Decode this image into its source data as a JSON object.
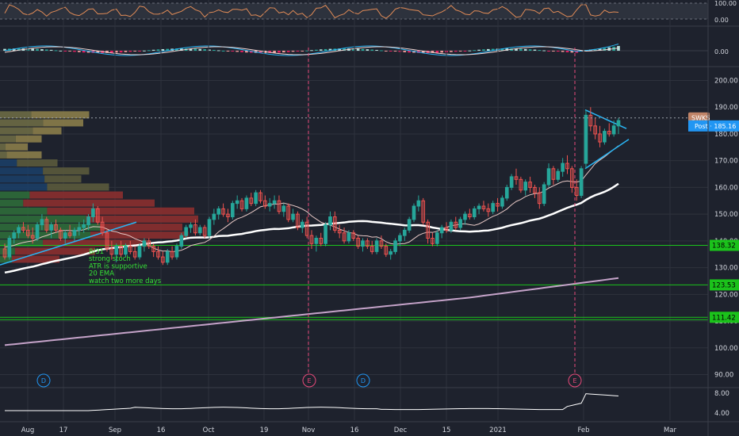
{
  "chart_data": {
    "type": "candlestick",
    "symbol": "SWKS",
    "post_label": "Post",
    "post_price": "185.16",
    "last_price": 185.16,
    "price_axis_ticks": [
      90,
      100,
      110,
      120,
      130,
      140,
      150,
      160,
      170,
      180,
      190,
      200
    ],
    "price_axis_range": [
      86,
      204
    ],
    "time_axis_labels": [
      "Aug",
      "17",
      "Sep",
      "16",
      "Oct",
      "19",
      "Nov",
      "16",
      "Dec",
      "15",
      "2021",
      "Feb",
      "Mar"
    ],
    "horizontal_levels": [
      {
        "value": 138.32,
        "label": "138.32"
      },
      {
        "value": 123.53,
        "label": "123.53"
      },
      {
        "value": 111.42,
        "label": "111.42"
      }
    ],
    "annotation_note": [
      "8/31",
      "strong stoch",
      "ATR is supportive",
      "20 EMA",
      "watch two more days"
    ],
    "event_markers": [
      {
        "label": "D",
        "date": "Aug 13"
      },
      {
        "label": "E",
        "date": "Nov 2"
      },
      {
        "label": "D",
        "date": "Nov 19"
      },
      {
        "label": "E",
        "date": "Feb 1"
      }
    ],
    "volume_profile_rows": [
      {
        "price": 187,
        "bar": 0.45
      },
      {
        "price": 184,
        "bar": 0.42
      },
      {
        "price": 181,
        "bar": 0.31
      },
      {
        "price": 178,
        "bar": 0.21
      },
      {
        "price": 175,
        "bar": 0.14
      },
      {
        "price": 172,
        "bar": 0.21
      },
      {
        "price": 169,
        "bar": 0.29
      },
      {
        "price": 166,
        "bar": 0.45
      },
      {
        "price": 163,
        "bar": 0.41
      },
      {
        "price": 160,
        "bar": 0.55
      },
      {
        "price": 157,
        "bar": 0.62
      },
      {
        "price": 154,
        "bar": 0.78
      },
      {
        "price": 151,
        "bar": 0.98
      },
      {
        "price": 148,
        "bar": 1.0
      },
      {
        "price": 145,
        "bar": 0.92
      },
      {
        "price": 142,
        "bar": 0.95
      },
      {
        "price": 139,
        "bar": 0.74
      },
      {
        "price": 136,
        "bar": 0.48
      },
      {
        "price": 133,
        "bar": 0.3
      }
    ],
    "candles": [
      {
        "d": "Aug 3",
        "o": 137,
        "h": 139,
        "l": 133,
        "c": 134
      },
      {
        "d": "Aug 4",
        "o": 134,
        "h": 142,
        "l": 133,
        "c": 141
      },
      {
        "d": "Aug 5",
        "o": 141,
        "h": 144,
        "l": 139,
        "c": 143
      },
      {
        "d": "Aug 6",
        "o": 143,
        "h": 146,
        "l": 141,
        "c": 145
      },
      {
        "d": "Aug 7",
        "o": 145,
        "h": 147,
        "l": 143,
        "c": 144
      },
      {
        "d": "Aug 10",
        "o": 144,
        "h": 146,
        "l": 141,
        "c": 142
      },
      {
        "d": "Aug 11",
        "o": 142,
        "h": 145,
        "l": 139,
        "c": 141
      },
      {
        "d": "Aug 12",
        "o": 141,
        "h": 147,
        "l": 140,
        "c": 146
      },
      {
        "d": "Aug 13",
        "o": 146,
        "h": 150,
        "l": 144,
        "c": 148
      },
      {
        "d": "Aug 14",
        "o": 148,
        "h": 149,
        "l": 143,
        "c": 144
      },
      {
        "d": "Aug 17",
        "o": 144,
        "h": 147,
        "l": 141,
        "c": 146
      },
      {
        "d": "Aug 18",
        "o": 146,
        "h": 148,
        "l": 143,
        "c": 144
      },
      {
        "d": "Aug 19",
        "o": 144,
        "h": 145,
        "l": 140,
        "c": 141
      },
      {
        "d": "Aug 20",
        "o": 141,
        "h": 144,
        "l": 139,
        "c": 143
      },
      {
        "d": "Aug 21",
        "o": 143,
        "h": 146,
        "l": 141,
        "c": 142
      },
      {
        "d": "Aug 24",
        "o": 142,
        "h": 145,
        "l": 140,
        "c": 144
      },
      {
        "d": "Aug 25",
        "o": 144,
        "h": 147,
        "l": 142,
        "c": 145
      },
      {
        "d": "Aug 26",
        "o": 145,
        "h": 148,
        "l": 143,
        "c": 146
      },
      {
        "d": "Aug 27",
        "o": 146,
        "h": 150,
        "l": 144,
        "c": 149
      },
      {
        "d": "Aug 28",
        "o": 149,
        "h": 154,
        "l": 147,
        "c": 152
      },
      {
        "d": "Aug 31",
        "o": 152,
        "h": 153,
        "l": 146,
        "c": 147
      },
      {
        "d": "Sep 1",
        "o": 147,
        "h": 149,
        "l": 142,
        "c": 143
      },
      {
        "d": "Sep 2",
        "o": 143,
        "h": 144,
        "l": 136,
        "c": 137
      },
      {
        "d": "Sep 3",
        "o": 137,
        "h": 140,
        "l": 133,
        "c": 135
      },
      {
        "d": "Sep 4",
        "o": 135,
        "h": 139,
        "l": 132,
        "c": 138
      },
      {
        "d": "Sep 8",
        "o": 138,
        "h": 140,
        "l": 134,
        "c": 135
      },
      {
        "d": "Sep 9",
        "o": 135,
        "h": 139,
        "l": 134,
        "c": 138
      },
      {
        "d": "Sep 10",
        "o": 138,
        "h": 140,
        "l": 135,
        "c": 136
      },
      {
        "d": "Sep 11",
        "o": 136,
        "h": 138,
        "l": 133,
        "c": 134
      },
      {
        "d": "Sep 14",
        "o": 134,
        "h": 139,
        "l": 133,
        "c": 138
      },
      {
        "d": "Sep 15",
        "o": 138,
        "h": 141,
        "l": 136,
        "c": 140
      },
      {
        "d": "Sep 16",
        "o": 140,
        "h": 141,
        "l": 137,
        "c": 138
      },
      {
        "d": "Sep 17",
        "o": 138,
        "h": 139,
        "l": 134,
        "c": 136
      },
      {
        "d": "Sep 18",
        "o": 136,
        "h": 138,
        "l": 133,
        "c": 134
      },
      {
        "d": "Sep 21",
        "o": 134,
        "h": 136,
        "l": 131,
        "c": 132
      },
      {
        "d": "Sep 22",
        "o": 132,
        "h": 137,
        "l": 131,
        "c": 136
      },
      {
        "d": "Sep 23",
        "o": 136,
        "h": 138,
        "l": 133,
        "c": 134
      },
      {
        "d": "Sep 24",
        "o": 134,
        "h": 139,
        "l": 133,
        "c": 138
      },
      {
        "d": "Sep 25",
        "o": 138,
        "h": 143,
        "l": 137,
        "c": 142
      },
      {
        "d": "Sep 28",
        "o": 142,
        "h": 146,
        "l": 141,
        "c": 145
      },
      {
        "d": "Sep 29",
        "o": 145,
        "h": 147,
        "l": 143,
        "c": 146
      },
      {
        "d": "Sep 30",
        "o": 146,
        "h": 148,
        "l": 142,
        "c": 143
      },
      {
        "d": "Oct 1",
        "o": 143,
        "h": 146,
        "l": 142,
        "c": 145
      },
      {
        "d": "Oct 2",
        "o": 145,
        "h": 146,
        "l": 141,
        "c": 142
      },
      {
        "d": "Oct 5",
        "o": 142,
        "h": 149,
        "l": 141,
        "c": 148
      },
      {
        "d": "Oct 6",
        "o": 148,
        "h": 152,
        "l": 146,
        "c": 150
      },
      {
        "d": "Oct 7",
        "o": 150,
        "h": 153,
        "l": 148,
        "c": 152
      },
      {
        "d": "Oct 8",
        "o": 152,
        "h": 154,
        "l": 149,
        "c": 150
      },
      {
        "d": "Oct 9",
        "o": 150,
        "h": 152,
        "l": 147,
        "c": 149
      },
      {
        "d": "Oct 12",
        "o": 149,
        "h": 155,
        "l": 148,
        "c": 154
      },
      {
        "d": "Oct 13",
        "o": 154,
        "h": 157,
        "l": 152,
        "c": 155
      },
      {
        "d": "Oct 14",
        "o": 155,
        "h": 156,
        "l": 151,
        "c": 152
      },
      {
        "d": "Oct 15",
        "o": 152,
        "h": 157,
        "l": 151,
        "c": 156
      },
      {
        "d": "Oct 16",
        "o": 156,
        "h": 158,
        "l": 153,
        "c": 154
      },
      {
        "d": "Oct 19",
        "o": 154,
        "h": 159,
        "l": 153,
        "c": 158
      },
      {
        "d": "Oct 20",
        "o": 158,
        "h": 159,
        "l": 154,
        "c": 155
      },
      {
        "d": "Oct 21",
        "o": 155,
        "h": 157,
        "l": 152,
        "c": 153
      },
      {
        "d": "Oct 22",
        "o": 153,
        "h": 156,
        "l": 151,
        "c": 154
      },
      {
        "d": "Oct 23",
        "o": 154,
        "h": 157,
        "l": 152,
        "c": 155
      },
      {
        "d": "Oct 26",
        "o": 155,
        "h": 157,
        "l": 150,
        "c": 151
      },
      {
        "d": "Oct 27",
        "o": 151,
        "h": 154,
        "l": 149,
        "c": 153
      },
      {
        "d": "Oct 28",
        "o": 153,
        "h": 154,
        "l": 147,
        "c": 148
      },
      {
        "d": "Oct 29",
        "o": 148,
        "h": 152,
        "l": 147,
        "c": 150
      },
      {
        "d": "Oct 30",
        "o": 150,
        "h": 151,
        "l": 144,
        "c": 145
      },
      {
        "d": "Nov 2",
        "o": 145,
        "h": 148,
        "l": 143,
        "c": 147
      },
      {
        "d": "Nov 3",
        "o": 147,
        "h": 149,
        "l": 141,
        "c": 142
      },
      {
        "d": "Nov 4",
        "o": 142,
        "h": 144,
        "l": 137,
        "c": 139
      },
      {
        "d": "Nov 5",
        "o": 139,
        "h": 142,
        "l": 136,
        "c": 141
      },
      {
        "d": "Nov 6",
        "o": 141,
        "h": 143,
        "l": 138,
        "c": 139
      },
      {
        "d": "Nov 9",
        "o": 139,
        "h": 147,
        "l": 138,
        "c": 146
      },
      {
        "d": "Nov 10",
        "o": 146,
        "h": 151,
        "l": 144,
        "c": 149
      },
      {
        "d": "Nov 11",
        "o": 149,
        "h": 151,
        "l": 143,
        "c": 144
      },
      {
        "d": "Nov 12",
        "o": 144,
        "h": 146,
        "l": 141,
        "c": 143
      },
      {
        "d": "Nov 13",
        "o": 143,
        "h": 145,
        "l": 139,
        "c": 140
      },
      {
        "d": "Nov 16",
        "o": 140,
        "h": 144,
        "l": 139,
        "c": 143
      },
      {
        "d": "Nov 17",
        "o": 143,
        "h": 144,
        "l": 140,
        "c": 141
      },
      {
        "d": "Nov 18",
        "o": 141,
        "h": 142,
        "l": 137,
        "c": 138
      },
      {
        "d": "Nov 19",
        "o": 138,
        "h": 141,
        "l": 136,
        "c": 140
      },
      {
        "d": "Nov 20",
        "o": 140,
        "h": 141,
        "l": 137,
        "c": 138
      },
      {
        "d": "Nov 23",
        "o": 138,
        "h": 140,
        "l": 135,
        "c": 136
      },
      {
        "d": "Nov 24",
        "o": 136,
        "h": 141,
        "l": 135,
        "c": 140
      },
      {
        "d": "Nov 25",
        "o": 140,
        "h": 142,
        "l": 137,
        "c": 138
      },
      {
        "d": "Nov 27",
        "o": 138,
        "h": 139,
        "l": 134,
        "c": 135
      },
      {
        "d": "Nov 30",
        "o": 135,
        "h": 137,
        "l": 133,
        "c": 136
      },
      {
        "d": "Dec 1",
        "o": 136,
        "h": 141,
        "l": 135,
        "c": 140
      },
      {
        "d": "Dec 2",
        "o": 140,
        "h": 143,
        "l": 138,
        "c": 142
      },
      {
        "d": "Dec 3",
        "o": 142,
        "h": 145,
        "l": 140,
        "c": 144
      },
      {
        "d": "Dec 4",
        "o": 144,
        "h": 149,
        "l": 143,
        "c": 148
      },
      {
        "d": "Dec 7",
        "o": 148,
        "h": 154,
        "l": 147,
        "c": 153
      },
      {
        "d": "Dec 8",
        "o": 153,
        "h": 157,
        "l": 151,
        "c": 155
      },
      {
        "d": "Dec 9",
        "o": 155,
        "h": 156,
        "l": 146,
        "c": 147
      },
      {
        "d": "Dec 10",
        "o": 147,
        "h": 148,
        "l": 139,
        "c": 141
      },
      {
        "d": "Dec 11",
        "o": 141,
        "h": 143,
        "l": 138,
        "c": 139
      },
      {
        "d": "Dec 14",
        "o": 139,
        "h": 144,
        "l": 138,
        "c": 143
      },
      {
        "d": "Dec 15",
        "o": 143,
        "h": 146,
        "l": 141,
        "c": 145
      },
      {
        "d": "Dec 16",
        "o": 145,
        "h": 147,
        "l": 143,
        "c": 144
      },
      {
        "d": "Dec 17",
        "o": 144,
        "h": 148,
        "l": 143,
        "c": 147
      },
      {
        "d": "Dec 18",
        "o": 147,
        "h": 149,
        "l": 144,
        "c": 145
      },
      {
        "d": "Dec 21",
        "o": 145,
        "h": 149,
        "l": 144,
        "c": 148
      },
      {
        "d": "Dec 22",
        "o": 148,
        "h": 151,
        "l": 146,
        "c": 150
      },
      {
        "d": "Dec 23",
        "o": 150,
        "h": 152,
        "l": 148,
        "c": 149
      },
      {
        "d": "Dec 24",
        "o": 149,
        "h": 153,
        "l": 148,
        "c": 152
      },
      {
        "d": "Dec 28",
        "o": 152,
        "h": 154,
        "l": 150,
        "c": 153
      },
      {
        "d": "Dec 29",
        "o": 153,
        "h": 155,
        "l": 151,
        "c": 152
      },
      {
        "d": "Dec 30",
        "o": 152,
        "h": 154,
        "l": 149,
        "c": 151
      },
      {
        "d": "Dec 31",
        "o": 151,
        "h": 155,
        "l": 150,
        "c": 154
      },
      {
        "d": "Jan 4",
        "o": 154,
        "h": 156,
        "l": 151,
        "c": 153
      },
      {
        "d": "Jan 5",
        "o": 153,
        "h": 157,
        "l": 152,
        "c": 156
      },
      {
        "d": "Jan 6",
        "o": 156,
        "h": 161,
        "l": 155,
        "c": 160
      },
      {
        "d": "Jan 7",
        "o": 160,
        "h": 165,
        "l": 159,
        "c": 164
      },
      {
        "d": "Jan 8",
        "o": 164,
        "h": 167,
        "l": 161,
        "c": 163
      },
      {
        "d": "Jan 11",
        "o": 163,
        "h": 164,
        "l": 158,
        "c": 159
      },
      {
        "d": "Jan 12",
        "o": 159,
        "h": 163,
        "l": 157,
        "c": 162
      },
      {
        "d": "Jan 13",
        "o": 162,
        "h": 164,
        "l": 158,
        "c": 160
      },
      {
        "d": "Jan 14",
        "o": 160,
        "h": 161,
        "l": 156,
        "c": 158
      },
      {
        "d": "Jan 15",
        "o": 158,
        "h": 160,
        "l": 152,
        "c": 154
      },
      {
        "d": "Jan 19",
        "o": 154,
        "h": 162,
        "l": 153,
        "c": 161
      },
      {
        "d": "Jan 20",
        "o": 161,
        "h": 169,
        "l": 160,
        "c": 167
      },
      {
        "d": "Jan 21",
        "o": 167,
        "h": 168,
        "l": 161,
        "c": 163
      },
      {
        "d": "Jan 22",
        "o": 163,
        "h": 167,
        "l": 162,
        "c": 166
      },
      {
        "d": "Jan 25",
        "o": 166,
        "h": 171,
        "l": 164,
        "c": 169
      },
      {
        "d": "Jan 26",
        "o": 169,
        "h": 172,
        "l": 165,
        "c": 167
      },
      {
        "d": "Jan 27",
        "o": 167,
        "h": 168,
        "l": 158,
        "c": 160
      },
      {
        "d": "Jan 28",
        "o": 160,
        "h": 163,
        "l": 155,
        "c": 157
      },
      {
        "d": "Jan 29",
        "o": 157,
        "h": 168,
        "l": 156,
        "c": 167
      },
      {
        "d": "Feb 1",
        "o": 169,
        "h": 189,
        "l": 167,
        "c": 187
      },
      {
        "d": "Feb 2",
        "o": 187,
        "h": 190,
        "l": 181,
        "c": 183
      },
      {
        "d": "Feb 3",
        "o": 183,
        "h": 186,
        "l": 178,
        "c": 180
      },
      {
        "d": "Feb 4",
        "o": 180,
        "h": 183,
        "l": 175,
        "c": 177
      },
      {
        "d": "Feb 5",
        "o": 177,
        "h": 182,
        "l": 176,
        "c": 181
      },
      {
        "d": "Feb 8",
        "o": 181,
        "h": 184,
        "l": 179,
        "c": 180
      },
      {
        "d": "Feb 9",
        "o": 180,
        "h": 185,
        "l": 179,
        "c": 183
      },
      {
        "d": "Feb 10",
        "o": 183,
        "h": 186,
        "l": 180,
        "c": 185
      }
    ],
    "lower_panel_ticks": [
      "4.00",
      "8.00"
    ],
    "top_panel_ticks": [
      "100.00",
      "0.00"
    ],
    "macd_panel_ticks": [
      "0.00"
    ],
    "colors": {
      "background": "#1e222d",
      "grid": "#2e323d",
      "up": "#26a69a",
      "down": "#ef5350",
      "ma_slow": "#ffffff",
      "ma_long": "#c5a3c9",
      "ema": "#e8c9c6",
      "level_line": "#1bc21b",
      "trendline": "#29b6f6",
      "symbol_tag": "#c08468",
      "post_tag": "#2196f3",
      "annotation": "#35e135",
      "earnings_line": "#e84a7a"
    }
  }
}
